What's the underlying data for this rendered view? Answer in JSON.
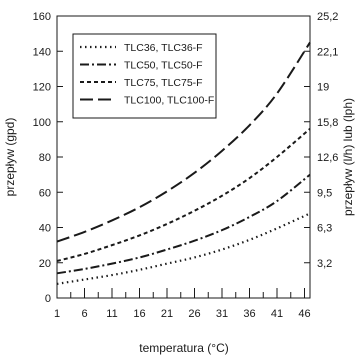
{
  "chart_data": {
    "type": "line",
    "xlabel": "temperatura (°C)",
    "ylabel": "przepływ (gpd)",
    "y2label": "przepływ (l/h) lub (lph)",
    "xlim": [
      1,
      47
    ],
    "ylim": [
      0,
      160
    ],
    "x_ticks": [
      1,
      6,
      11,
      16,
      21,
      26,
      31,
      36,
      41,
      46
    ],
    "y_ticks": [
      0,
      20,
      40,
      60,
      80,
      100,
      120,
      140,
      160
    ],
    "y2_tick_labels": [
      "3,2",
      "6,3",
      "9,5",
      "12,6",
      "15,8",
      "19",
      "22,1",
      "25,2"
    ],
    "y2_tick_values_gpd": [
      20,
      40,
      60,
      80,
      100,
      120,
      140,
      160
    ],
    "grid": false,
    "legend_position": "top-left",
    "series": [
      {
        "name": "TLC36, TLC36-F",
        "style": "dotted",
        "x": [
          1,
          6,
          11,
          16,
          21,
          26,
          31,
          36,
          41,
          47
        ],
        "y": [
          8,
          10.5,
          13,
          16,
          19.5,
          23,
          27.5,
          33,
          39.5,
          48
        ]
      },
      {
        "name": "TLC50, TLC50-F",
        "style": "dash-dot",
        "x": [
          1,
          6,
          11,
          16,
          21,
          26,
          31,
          36,
          41,
          47
        ],
        "y": [
          14,
          16.5,
          19.5,
          23,
          27.5,
          32.5,
          38.5,
          46,
          55,
          70
        ]
      },
      {
        "name": "TLC75, TLC75-F",
        "style": "short-dash",
        "x": [
          1,
          6,
          11,
          16,
          21,
          26,
          31,
          36,
          41,
          47
        ],
        "y": [
          21,
          25,
          30,
          35.5,
          42,
          49.5,
          58,
          68,
          80,
          96
        ]
      },
      {
        "name": "TLC100, TLC100-F",
        "style": "long-dash",
        "x": [
          1,
          6,
          11,
          16,
          21,
          26,
          31,
          36,
          41,
          47
        ],
        "y": [
          32,
          37.5,
          44,
          51.5,
          60.5,
          71,
          83.5,
          98,
          116,
          145
        ]
      }
    ]
  }
}
